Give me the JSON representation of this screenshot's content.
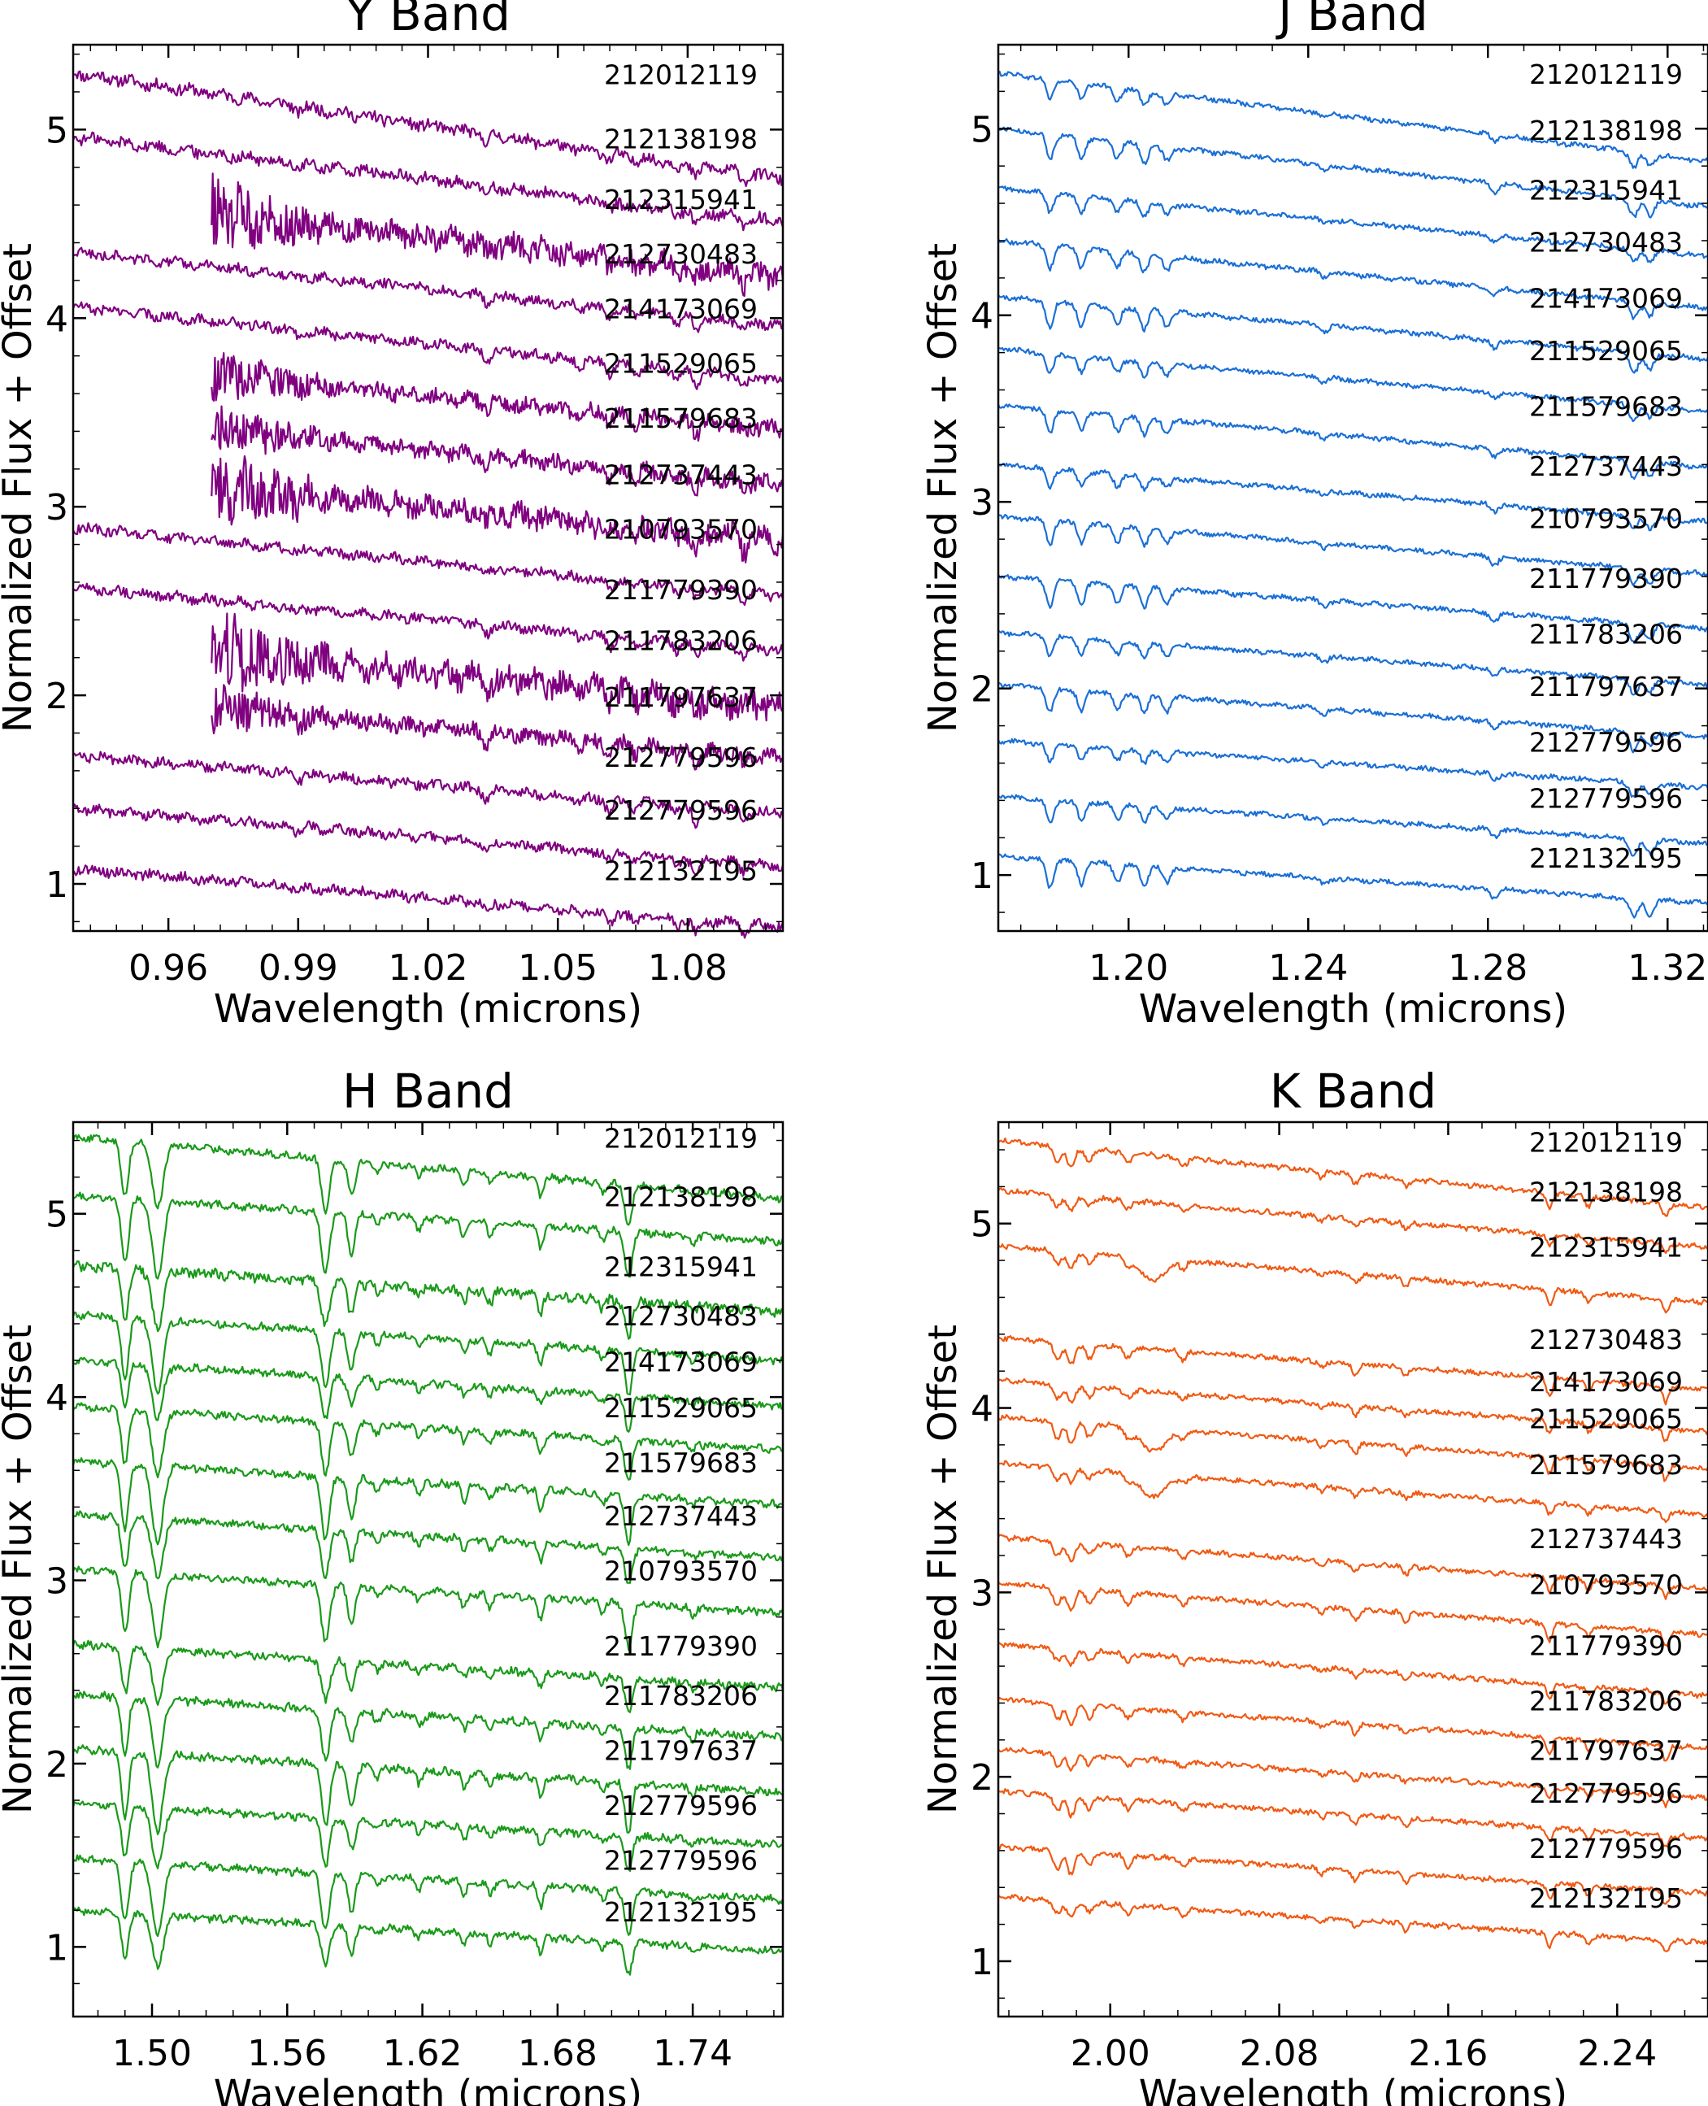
{
  "chart_data": [
    {
      "type": "line",
      "title": "Y Band",
      "xlabel": "Wavelength (microns)",
      "ylabel": "Normalized Flux + Offset",
      "xlim": [
        0.938,
        1.102
      ],
      "ylim": [
        0.75,
        5.45
      ],
      "xticks": [
        "0.96",
        "0.99",
        "1.02",
        "1.05",
        "1.08"
      ],
      "xtick_values": [
        0.96,
        0.99,
        1.02,
        1.05,
        1.08
      ],
      "yticks": [
        "1",
        "2",
        "3",
        "4",
        "5"
      ],
      "ytick_values": [
        1,
        2,
        3,
        4,
        5
      ],
      "color": "#800080",
      "series": [
        {
          "name": "212012119",
          "start": 0.938,
          "level": 5.3,
          "slope": -2.0,
          "noise": 0.03
        },
        {
          "name": "212138198",
          "start": 0.938,
          "level": 4.96,
          "slope": -1.6,
          "noise": 0.03
        },
        {
          "name": "212315941",
          "start": 0.97,
          "level": 4.64,
          "slope": -1.5,
          "noise": 0.06
        },
        {
          "name": "212730483",
          "start": 0.938,
          "level": 4.35,
          "slope": -1.4,
          "noise": 0.025
        },
        {
          "name": "214173069",
          "start": 0.938,
          "level": 4.06,
          "slope": -1.4,
          "noise": 0.025
        },
        {
          "name": "211529065",
          "start": 0.97,
          "level": 3.77,
          "slope": -1.3,
          "noise": 0.04
        },
        {
          "name": "211579683",
          "start": 0.97,
          "level": 3.48,
          "slope": -1.3,
          "noise": 0.04
        },
        {
          "name": "212737443",
          "start": 0.97,
          "level": 3.18,
          "slope": -1.3,
          "noise": 0.06
        },
        {
          "name": "210793570",
          "start": 0.938,
          "level": 2.89,
          "slope": -1.3,
          "noise": 0.025
        },
        {
          "name": "211779390",
          "start": 0.938,
          "level": 2.57,
          "slope": -1.2,
          "noise": 0.025
        },
        {
          "name": "211783206",
          "start": 0.97,
          "level": 2.3,
          "slope": -1.3,
          "noise": 0.07
        },
        {
          "name": "211797637",
          "start": 0.97,
          "level": 2.0,
          "slope": -1.2,
          "noise": 0.04
        },
        {
          "name": "212779596",
          "start": 0.938,
          "level": 1.68,
          "slope": -1.1,
          "noise": 0.025
        },
        {
          "name": "212779596",
          "start": 0.938,
          "level": 1.4,
          "slope": -1.1,
          "noise": 0.025
        },
        {
          "name": "212132195",
          "start": 0.938,
          "level": 1.08,
          "slope": -1.1,
          "noise": 0.025
        }
      ]
    },
    {
      "type": "line",
      "title": "J Band",
      "xlabel": "Wavelength (microns)",
      "ylabel": "Normalized Flux + Offset",
      "xlim": [
        1.171,
        1.329
      ],
      "ylim": [
        0.7,
        5.45
      ],
      "xticks": [
        "1.20",
        "1.24",
        "1.28",
        "1.32"
      ],
      "xtick_values": [
        1.2,
        1.24,
        1.28,
        1.32
      ],
      "yticks": [
        "1",
        "2",
        "3",
        "4",
        "5"
      ],
      "ytick_values": [
        1,
        2,
        3,
        4,
        5
      ],
      "color": "#1a6fd6",
      "series": [
        {
          "name": "212012119",
          "level": 5.3,
          "slope": -1.7,
          "noise": 0.012
        },
        {
          "name": "212138198",
          "level": 5.0,
          "slope": -1.5,
          "noise": 0.012
        },
        {
          "name": "212315941",
          "level": 4.68,
          "slope": -1.3,
          "noise": 0.012
        },
        {
          "name": "212730483",
          "level": 4.4,
          "slope": -1.3,
          "noise": 0.012
        },
        {
          "name": "214173069",
          "level": 4.1,
          "slope": -1.2,
          "noise": 0.012
        },
        {
          "name": "211529065",
          "level": 3.82,
          "slope": -1.2,
          "noise": 0.012
        },
        {
          "name": "211579683",
          "level": 3.52,
          "slope": -1.2,
          "noise": 0.012
        },
        {
          "name": "212737443",
          "level": 3.2,
          "slope": -1.1,
          "noise": 0.012
        },
        {
          "name": "210793570",
          "level": 2.92,
          "slope": -1.1,
          "noise": 0.012
        },
        {
          "name": "211779390",
          "level": 2.6,
          "slope": -1.0,
          "noise": 0.012
        },
        {
          "name": "211783206",
          "level": 2.3,
          "slope": -1.0,
          "noise": 0.012
        },
        {
          "name": "211797637",
          "level": 2.02,
          "slope": -1.0,
          "noise": 0.012
        },
        {
          "name": "212779596",
          "level": 1.72,
          "slope": -0.9,
          "noise": 0.012
        },
        {
          "name": "212779596",
          "level": 1.42,
          "slope": -0.9,
          "noise": 0.012
        },
        {
          "name": "212132195",
          "level": 1.1,
          "slope": -0.9,
          "noise": 0.012
        }
      ]
    },
    {
      "type": "line",
      "title": "H Band",
      "xlabel": "Wavelength (microns)",
      "ylabel": "Normalized Flux + Offset",
      "xlim": [
        1.465,
        1.78
      ],
      "ylim": [
        0.62,
        5.5
      ],
      "xticks": [
        "1.50",
        "1.56",
        "1.62",
        "1.68",
        "1.74"
      ],
      "xtick_values": [
        1.5,
        1.56,
        1.62,
        1.68,
        1.74
      ],
      "yticks": [
        "1",
        "2",
        "3",
        "4",
        "5"
      ],
      "ytick_values": [
        1,
        2,
        3,
        4,
        5
      ],
      "color": "#1a9a1a",
      "series": [
        {
          "name": "212012119",
          "level": 5.42,
          "slope": -1.2,
          "noise": 0.018
        },
        {
          "name": "212138198",
          "level": 5.1,
          "slope": -0.9,
          "noise": 0.018
        },
        {
          "name": "212315941",
          "level": 4.72,
          "slope": -0.9,
          "noise": 0.025
        },
        {
          "name": "212730483",
          "level": 4.45,
          "slope": -0.9,
          "noise": 0.018
        },
        {
          "name": "214173069",
          "level": 4.2,
          "slope": -0.9,
          "noise": 0.018
        },
        {
          "name": "211529065",
          "level": 3.95,
          "slope": -0.85,
          "noise": 0.018
        },
        {
          "name": "211579683",
          "level": 3.65,
          "slope": -0.85,
          "noise": 0.018
        },
        {
          "name": "212737443",
          "level": 3.36,
          "slope": -0.85,
          "noise": 0.018
        },
        {
          "name": "210793570",
          "level": 3.06,
          "slope": -0.85,
          "noise": 0.018
        },
        {
          "name": "211779390",
          "level": 2.65,
          "slope": -0.85,
          "noise": 0.02
        },
        {
          "name": "211783206",
          "level": 2.38,
          "slope": -0.85,
          "noise": 0.02
        },
        {
          "name": "211797637",
          "level": 2.08,
          "slope": -0.85,
          "noise": 0.02
        },
        {
          "name": "212779596",
          "level": 1.78,
          "slope": -0.8,
          "noise": 0.018
        },
        {
          "name": "212779596",
          "level": 1.48,
          "slope": -0.8,
          "noise": 0.018
        },
        {
          "name": "212132195",
          "level": 1.2,
          "slope": -0.8,
          "noise": 0.018
        }
      ]
    },
    {
      "type": "line",
      "title": "K Band",
      "xlabel": "Wavelength (microns)",
      "ylabel": "Normalized Flux + Offset",
      "xlim": [
        1.947,
        2.283
      ],
      "ylim": [
        0.7,
        5.55
      ],
      "xticks": [
        "2.00",
        "2.08",
        "2.16",
        "2.24"
      ],
      "xtick_values": [
        2.0,
        2.08,
        2.16,
        2.24
      ],
      "yticks": [
        "1",
        "2",
        "3",
        "4",
        "5"
      ],
      "ytick_values": [
        1,
        2,
        3,
        4,
        5
      ],
      "color": "#f05a14",
      "series": [
        {
          "name": "212012119",
          "level": 5.45,
          "slope": -1.3,
          "noise": 0.012
        },
        {
          "name": "212138198",
          "level": 5.18,
          "slope": -1.1,
          "noise": 0.012
        },
        {
          "name": "212315941",
          "level": 4.88,
          "slope": -1.1,
          "noise": 0.012
        },
        {
          "name": "212730483",
          "level": 4.38,
          "slope": -1.0,
          "noise": 0.012
        },
        {
          "name": "214173069",
          "level": 4.15,
          "slope": -1.0,
          "noise": 0.012
        },
        {
          "name": "211529065",
          "level": 3.95,
          "slope": -1.0,
          "noise": 0.012
        },
        {
          "name": "211579683",
          "level": 3.7,
          "slope": -1.0,
          "noise": 0.012
        },
        {
          "name": "212737443",
          "level": 3.3,
          "slope": -1.0,
          "noise": 0.012
        },
        {
          "name": "210793570",
          "level": 3.05,
          "slope": -1.0,
          "noise": 0.012
        },
        {
          "name": "211779390",
          "level": 2.72,
          "slope": -1.0,
          "noise": 0.012
        },
        {
          "name": "211783206",
          "level": 2.42,
          "slope": -0.95,
          "noise": 0.012
        },
        {
          "name": "211797637",
          "level": 2.15,
          "slope": -0.95,
          "noise": 0.012
        },
        {
          "name": "212779596",
          "level": 1.92,
          "slope": -0.9,
          "noise": 0.012
        },
        {
          "name": "212779596",
          "level": 1.62,
          "slope": -0.9,
          "noise": 0.012
        },
        {
          "name": "212132195",
          "level": 1.35,
          "slope": -0.9,
          "noise": 0.012
        }
      ]
    }
  ]
}
